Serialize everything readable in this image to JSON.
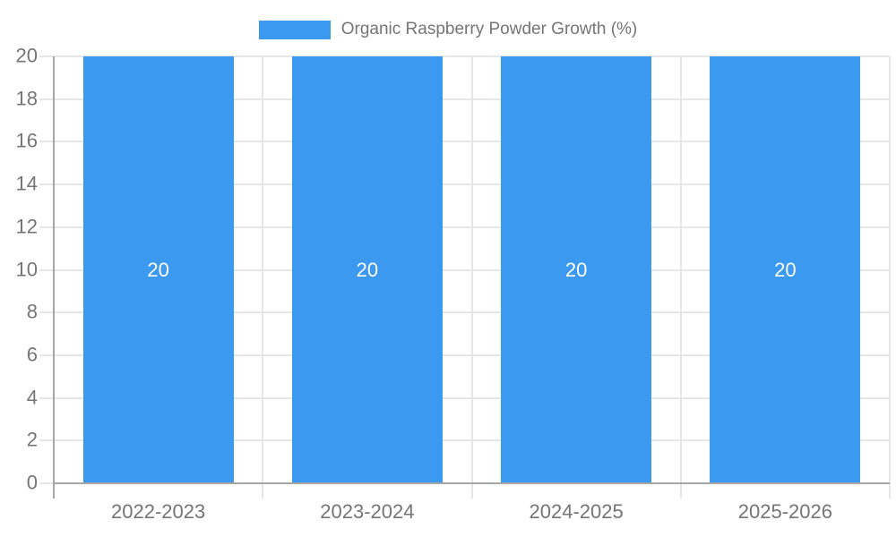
{
  "chart_data": {
    "type": "bar",
    "title": "",
    "legend": "Organic Raspberry Powder Growth (%)",
    "legend_position": "top-center",
    "categories": [
      "2022-2023",
      "2023-2024",
      "2024-2025",
      "2025-2026"
    ],
    "series": [
      {
        "name": "Organic Raspberry Powder Growth (%)",
        "values": [
          20,
          20,
          20,
          20
        ]
      }
    ],
    "values": [
      20,
      20,
      20,
      20
    ],
    "bar_labels": [
      "20",
      "20",
      "20",
      "20"
    ],
    "xlabel": "",
    "ylabel": "",
    "ylim": [
      0,
      20
    ],
    "ytick_step": 2,
    "yticks": [
      0,
      2,
      4,
      6,
      8,
      10,
      12,
      14,
      16,
      18,
      20
    ],
    "grid": true,
    "colors": {
      "bar_color": "#3b99f0",
      "bar_label_color": "#ffffff",
      "axis_text_color": "#757575",
      "grid_color": "#e6e6e6",
      "axis_line_color": "#a6a6a6",
      "bg_color": "#ffffff"
    }
  }
}
